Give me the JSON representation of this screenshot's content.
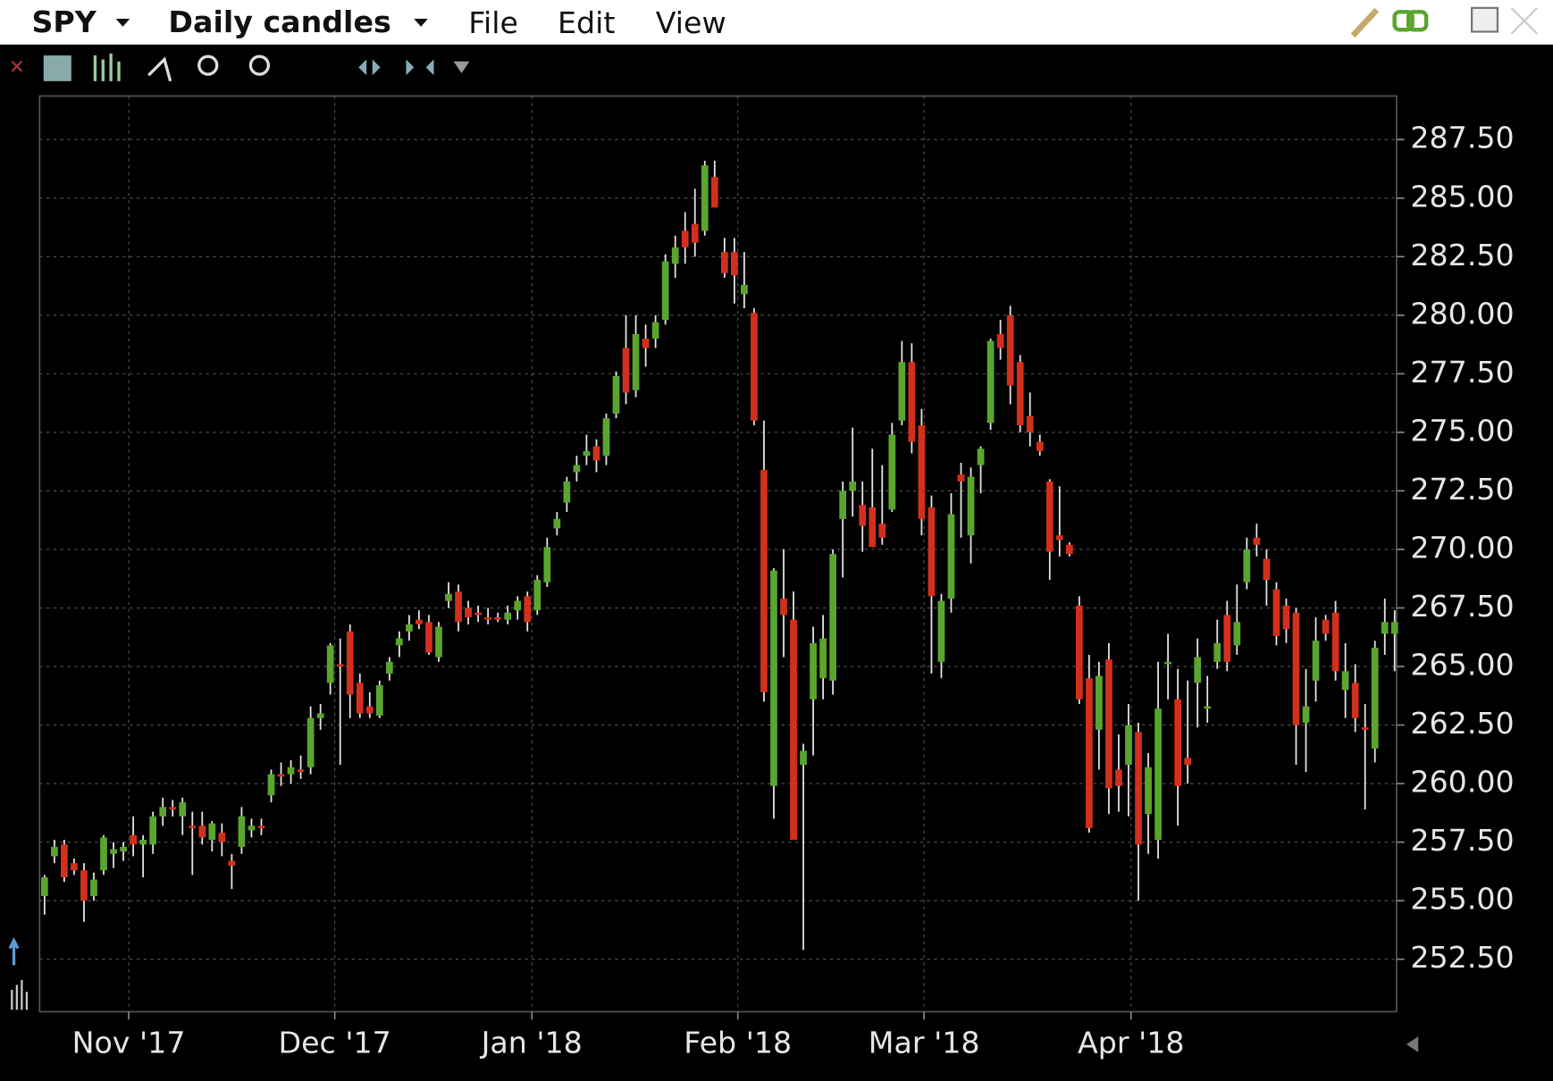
{
  "toolbar": {
    "symbol": "SPY",
    "period": "Daily candles",
    "menus": [
      "File",
      "Edit",
      "View"
    ]
  },
  "chart_data": {
    "type": "candlestick",
    "up_color": "#5aa52e",
    "down_color": "#d2301c",
    "wick_color": "#e6e6e6",
    "grid": true,
    "ylim": [
      250.26,
      289.36
    ],
    "xlim": [
      -0.5,
      137.19
    ],
    "yticks": [
      {
        "value": 252.5,
        "label": "252.50"
      },
      {
        "value": 255,
        "label": "255.00"
      },
      {
        "value": 257.5,
        "label": "257.50"
      },
      {
        "value": 260,
        "label": "260.00"
      },
      {
        "value": 262.5,
        "label": "262.50"
      },
      {
        "value": 265,
        "label": "265.00"
      },
      {
        "value": 267.5,
        "label": "267.50"
      },
      {
        "value": 270,
        "label": "270.00"
      },
      {
        "value": 272.5,
        "label": "272.50"
      },
      {
        "value": 275,
        "label": "275.00"
      },
      {
        "value": 277.5,
        "label": "277.50"
      },
      {
        "value": 280,
        "label": "280.00"
      },
      {
        "value": 282.5,
        "label": "282.50"
      },
      {
        "value": 285,
        "label": "285.00"
      },
      {
        "value": 287.5,
        "label": "287.50"
      }
    ],
    "xticks": [
      {
        "value": 8.54,
        "label": "Nov '17"
      },
      {
        "value": 29.45,
        "label": "Dec '17"
      },
      {
        "value": 49.45,
        "label": "Jan '18"
      },
      {
        "value": 70.35,
        "label": "Feb '18"
      },
      {
        "value": 89.25,
        "label": "Mar '18"
      },
      {
        "value": 110.25,
        "label": "Apr '18"
      }
    ],
    "ohlc": [
      [
        255.2,
        256.1,
        254.4,
        256.0
      ],
      [
        256.9,
        257.6,
        256.6,
        257.3
      ],
      [
        257.4,
        257.6,
        255.8,
        256.0
      ],
      [
        256.6,
        256.8,
        256.1,
        256.3
      ],
      [
        256.3,
        256.6,
        254.1,
        255.0
      ],
      [
        255.2,
        256.2,
        255.0,
        255.9
      ],
      [
        256.3,
        257.8,
        256.1,
        257.7
      ],
      [
        257.0,
        257.5,
        256.4,
        257.2
      ],
      [
        257.1,
        257.5,
        256.7,
        257.3
      ],
      [
        257.8,
        258.6,
        256.9,
        257.4
      ],
      [
        257.4,
        257.8,
        256.0,
        257.6
      ],
      [
        257.4,
        258.8,
        257.0,
        258.6
      ],
      [
        258.6,
        259.4,
        258.2,
        259.0
      ],
      [
        259.0,
        259.3,
        258.6,
        258.9
      ],
      [
        258.6,
        259.4,
        257.8,
        259.2
      ],
      [
        258.2,
        258.8,
        256.1,
        258.1
      ],
      [
        258.2,
        258.8,
        257.4,
        257.7
      ],
      [
        257.6,
        258.4,
        257.1,
        258.3
      ],
      [
        257.9,
        258.3,
        256.9,
        257.5
      ],
      [
        256.7,
        257.0,
        255.5,
        256.5
      ],
      [
        257.3,
        259.0,
        257.0,
        258.6
      ],
      [
        258.0,
        258.5,
        257.7,
        258.2
      ],
      [
        258.2,
        258.5,
        257.8,
        258.1
      ],
      [
        259.5,
        260.6,
        259.2,
        260.4
      ],
      [
        260.4,
        260.9,
        259.9,
        260.3
      ],
      [
        260.4,
        261.0,
        260.0,
        260.7
      ],
      [
        260.6,
        261.2,
        260.2,
        260.5
      ],
      [
        260.7,
        263.3,
        260.4,
        262.8
      ],
      [
        262.8,
        263.4,
        262.3,
        263.0
      ],
      [
        264.3,
        266.0,
        263.8,
        265.9
      ],
      [
        265.1,
        266.2,
        260.8,
        265.0
      ],
      [
        266.5,
        266.8,
        262.8,
        263.8
      ],
      [
        264.3,
        264.7,
        262.8,
        263.0
      ],
      [
        263.3,
        263.9,
        262.8,
        263.0
      ],
      [
        262.9,
        264.4,
        262.8,
        264.2
      ],
      [
        264.7,
        265.4,
        264.4,
        265.2
      ],
      [
        265.9,
        266.5,
        265.4,
        266.2
      ],
      [
        266.5,
        267.2,
        266.1,
        266.8
      ],
      [
        267.0,
        267.4,
        266.6,
        266.8
      ],
      [
        266.9,
        267.2,
        265.5,
        265.6
      ],
      [
        265.4,
        266.9,
        265.2,
        266.7
      ],
      [
        267.8,
        268.6,
        267.5,
        268.1
      ],
      [
        268.2,
        268.5,
        266.5,
        266.9
      ],
      [
        267.5,
        267.8,
        266.8,
        267.1
      ],
      [
        267.3,
        267.6,
        266.9,
        267.2
      ],
      [
        267.1,
        267.5,
        266.8,
        267.0
      ],
      [
        267.1,
        267.3,
        266.9,
        267.0
      ],
      [
        267.0,
        267.6,
        266.8,
        267.3
      ],
      [
        267.4,
        268.0,
        267.0,
        267.8
      ],
      [
        268.0,
        268.2,
        266.5,
        266.9
      ],
      [
        267.4,
        268.9,
        267.2,
        268.7
      ],
      [
        268.6,
        270.5,
        268.4,
        270.1
      ],
      [
        270.9,
        271.6,
        270.6,
        271.3
      ],
      [
        272.0,
        273.1,
        271.6,
        272.9
      ],
      [
        273.3,
        274.0,
        272.9,
        273.6
      ],
      [
        274.0,
        274.9,
        273.6,
        274.2
      ],
      [
        274.4,
        274.7,
        273.3,
        273.8
      ],
      [
        274.0,
        275.8,
        273.6,
        275.6
      ],
      [
        275.8,
        277.6,
        275.6,
        277.4
      ],
      [
        278.6,
        280.0,
        276.2,
        276.7
      ],
      [
        276.8,
        280.0,
        276.5,
        279.2
      ],
      [
        279.0,
        279.6,
        277.8,
        278.6
      ],
      [
        279.0,
        280.0,
        278.6,
        279.7
      ],
      [
        279.8,
        282.6,
        279.6,
        282.3
      ],
      [
        282.2,
        283.4,
        281.6,
        282.9
      ],
      [
        283.6,
        284.4,
        282.2,
        282.9
      ],
      [
        283.9,
        285.4,
        282.5,
        283.1
      ],
      [
        283.6,
        286.6,
        283.4,
        286.4
      ],
      [
        285.9,
        286.6,
        284.6,
        284.6
      ],
      [
        282.7,
        283.3,
        281.6,
        281.8
      ],
      [
        282.7,
        283.3,
        280.5,
        281.7
      ],
      [
        280.9,
        282.7,
        280.3,
        281.3
      ],
      [
        280.1,
        280.3,
        275.3,
        275.5
      ],
      [
        273.4,
        275.5,
        263.5,
        263.9
      ],
      [
        259.9,
        269.2,
        258.5,
        269.1
      ],
      [
        267.9,
        270.0,
        265.4,
        267.2
      ],
      [
        267.0,
        268.2,
        257.6,
        257.6
      ],
      [
        260.8,
        261.7,
        252.9,
        261.4
      ],
      [
        263.6,
        266.7,
        261.2,
        266.0
      ],
      [
        264.5,
        267.2,
        263.6,
        266.2
      ],
      [
        264.4,
        270.0,
        263.8,
        269.8
      ],
      [
        271.3,
        272.9,
        268.8,
        272.5
      ],
      [
        272.5,
        275.2,
        271.4,
        272.9
      ],
      [
        271.9,
        272.9,
        269.9,
        271.0
      ],
      [
        271.8,
        274.3,
        270.1,
        270.1
      ],
      [
        271.1,
        273.6,
        270.2,
        270.5
      ],
      [
        271.7,
        275.4,
        271.6,
        274.9
      ],
      [
        275.5,
        278.9,
        275.3,
        278.0
      ],
      [
        278.0,
        278.8,
        274.1,
        274.6
      ],
      [
        275.3,
        276.0,
        270.6,
        271.3
      ],
      [
        271.8,
        272.3,
        264.7,
        268.0
      ],
      [
        265.2,
        268.1,
        264.5,
        267.8
      ],
      [
        267.9,
        272.4,
        267.3,
        271.5
      ],
      [
        273.2,
        273.7,
        270.5,
        272.9
      ],
      [
        270.6,
        273.5,
        269.4,
        273.1
      ],
      [
        273.6,
        274.4,
        272.4,
        274.3
      ],
      [
        275.4,
        279.0,
        275.1,
        278.9
      ],
      [
        279.2,
        279.8,
        278.1,
        278.6
      ],
      [
        280.0,
        280.4,
        276.2,
        277.0
      ],
      [
        278.0,
        278.3,
        275.0,
        275.3
      ],
      [
        275.7,
        276.7,
        274.4,
        275.0
      ],
      [
        274.6,
        274.9,
        274.0,
        274.2
      ],
      [
        272.9,
        273.0,
        268.7,
        269.9
      ],
      [
        270.6,
        272.7,
        269.7,
        270.4
      ],
      [
        270.2,
        270.3,
        269.7,
        269.8
      ],
      [
        267.6,
        268.0,
        263.4,
        263.6
      ],
      [
        264.5,
        265.5,
        257.9,
        258.1
      ],
      [
        262.3,
        265.2,
        260.6,
        264.6
      ],
      [
        265.3,
        266.0,
        258.7,
        259.8
      ],
      [
        260.6,
        262.1,
        258.8,
        259.9
      ],
      [
        260.8,
        263.4,
        258.6,
        262.5
      ],
      [
        262.2,
        262.6,
        255.0,
        257.4
      ],
      [
        258.7,
        261.3,
        257.0,
        260.7
      ],
      [
        257.6,
        265.2,
        256.8,
        263.2
      ],
      [
        265.1,
        266.4,
        263.6,
        265.2
      ],
      [
        263.6,
        264.9,
        258.2,
        259.9
      ],
      [
        261.1,
        264.4,
        260.0,
        260.8
      ],
      [
        264.3,
        266.2,
        262.4,
        265.4
      ],
      [
        263.2,
        264.6,
        262.6,
        263.3
      ],
      [
        265.2,
        267.0,
        264.9,
        266.0
      ],
      [
        267.2,
        267.8,
        264.8,
        265.2
      ],
      [
        265.9,
        268.5,
        265.5,
        266.9
      ],
      [
        268.6,
        270.5,
        268.3,
        270.0
      ],
      [
        270.5,
        271.1,
        269.7,
        270.2
      ],
      [
        269.6,
        270.0,
        267.6,
        268.7
      ],
      [
        268.3,
        268.6,
        265.9,
        266.3
      ],
      [
        267.6,
        267.9,
        266.0,
        266.6
      ],
      [
        267.3,
        267.5,
        260.8,
        262.5
      ],
      [
        262.6,
        264.9,
        260.5,
        263.3
      ],
      [
        264.4,
        267.1,
        263.5,
        266.1
      ],
      [
        267.0,
        267.2,
        266.1,
        266.4
      ],
      [
        267.3,
        267.8,
        264.4,
        264.8
      ],
      [
        264.0,
        266.0,
        262.8,
        264.8
      ],
      [
        264.3,
        265.1,
        262.2,
        262.8
      ],
      [
        262.4,
        263.4,
        258.9,
        262.3
      ],
      [
        261.5,
        266.1,
        260.9,
        265.8
      ],
      [
        266.4,
        267.9,
        265.5,
        266.9
      ],
      [
        266.4,
        267.4,
        264.8,
        266.9
      ]
    ]
  }
}
